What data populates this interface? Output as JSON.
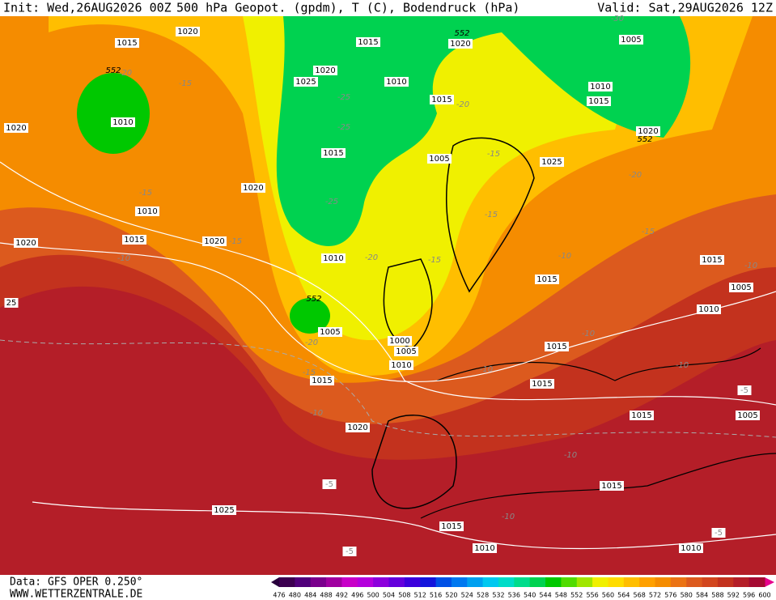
{
  "header": {
    "init": "Init: Wed,26AUG2026 00Z",
    "title": "500 hPa Geopot. (gpdm), T (C), Bodendruck (hPa)",
    "valid": "Valid: Sat,29AUG2026 12Z"
  },
  "footer": {
    "source": "Data: GFS OPER 0.250°",
    "site": "WWW.WETTERZENTRALE.DE"
  },
  "colorbar": {
    "labels": [
      476,
      480,
      484,
      488,
      492,
      496,
      500,
      504,
      508,
      512,
      516,
      520,
      524,
      528,
      532,
      536,
      540,
      544,
      548,
      552,
      556,
      560,
      564,
      568,
      572,
      576,
      580,
      584,
      588,
      592,
      596,
      600
    ],
    "colors": [
      "#3c0050",
      "#50007a",
      "#7a008c",
      "#a000a0",
      "#c800c8",
      "#b400dc",
      "#8c00dc",
      "#6400dc",
      "#3c00dc",
      "#1414dc",
      "#0050e6",
      "#0078f0",
      "#00a0f0",
      "#00c8f0",
      "#00dcc8",
      "#00dc8c",
      "#00d250",
      "#00c800",
      "#50dc00",
      "#a0e600",
      "#f0f000",
      "#ffdc00",
      "#ffbe00",
      "#ffa000",
      "#f58c00",
      "#eb7314",
      "#dc5a1e",
      "#d2461e",
      "#c3321e",
      "#b41e28",
      "#a50a32"
    ]
  },
  "map_labels": [
    "1015",
    "1020",
    "1015",
    "552",
    "1020",
    "-30",
    "1005",
    "-20",
    "552",
    "-15",
    "1020",
    "1025",
    "1010",
    "1010",
    "1015",
    "-25",
    "1015",
    "-20",
    "1010",
    "1020",
    "-25",
    "1020",
    "552",
    "1015",
    "1005",
    "-15",
    "1025",
    "-20",
    "1020",
    "-15",
    "-25",
    "1010",
    "-15",
    "1015",
    "1020",
    "1020",
    "-15",
    "-15",
    "-10",
    "1010",
    "-20",
    "-15",
    "-10",
    "1015",
    "-10",
    "1015",
    "1005",
    "552",
    "25",
    "1010",
    "1005",
    "-10",
    "-20",
    "1000",
    "1005",
    "1015",
    "1010",
    "-10",
    "-10",
    "-15",
    "1015",
    "1015",
    "-5",
    "-10",
    "1015",
    "1005",
    "1020",
    "-10",
    "-5",
    "1015",
    "1025",
    "-10",
    "1015",
    "-5",
    "1010",
    "1010",
    "-5"
  ]
}
